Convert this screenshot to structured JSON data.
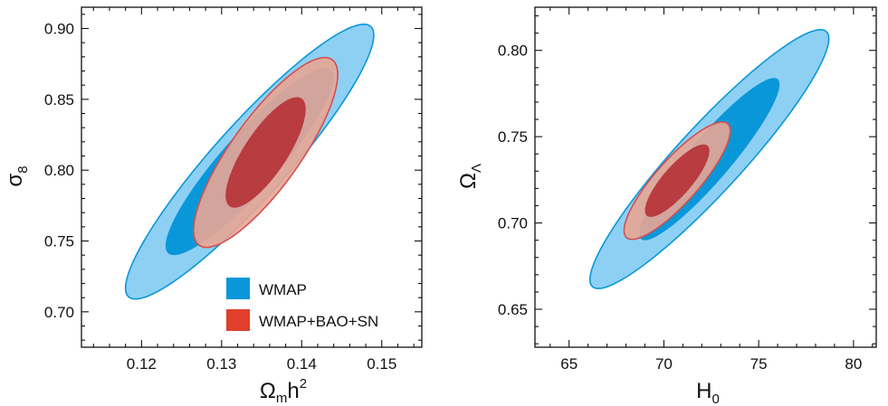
{
  "chart_data": [
    {
      "type": "contour",
      "xlabel": "Ω",
      "xlabel_sub": "m",
      "xlabel_tail": "h",
      "xlabel_sup": "2",
      "ylabel": "σ",
      "ylabel_sub": "8",
      "xlim": [
        0.1125,
        0.155
      ],
      "ylim": [
        0.675,
        0.915
      ],
      "xticks": [
        0.12,
        0.13,
        0.14,
        0.15
      ],
      "yticks": [
        0.7,
        0.75,
        0.8,
        0.85,
        0.9
      ],
      "xtick_labels": [
        "0.12",
        "0.13",
        "0.14",
        "0.15"
      ],
      "ytick_labels": [
        "0.70",
        "0.75",
        "0.80",
        "0.85",
        "0.90"
      ],
      "legend": {
        "position": "lower-right",
        "entries": [
          {
            "label": "WMAP",
            "color": "#0a97d9"
          },
          {
            "label": "WMAP+BAO+SN",
            "color": "#e1402c"
          }
        ]
      },
      "regions": [
        {
          "series": "WMAP",
          "level": "95%",
          "center": [
            0.1335,
            0.806
          ],
          "half_extent_x": 0.0155,
          "half_extent_y": 0.097,
          "correlation": 0.92,
          "fill": "#8ed0f4",
          "stroke": "#0a97d9"
        },
        {
          "series": "WMAP",
          "level": "68%",
          "center": [
            0.1335,
            0.806
          ],
          "half_extent_x": 0.0105,
          "half_extent_y": 0.066,
          "correlation": 0.9,
          "fill": "#0a97d9",
          "stroke": "none"
        },
        {
          "series": "WMAP+BAO+SN",
          "level": "95%",
          "center": [
            0.1355,
            0.8125
          ],
          "half_extent_x": 0.009,
          "half_extent_y": 0.067,
          "correlation": 0.82,
          "fill": "#e8a595",
          "stroke": "#d45050",
          "opacity": 0.9
        },
        {
          "series": "WMAP+BAO+SN",
          "level": "68%",
          "center": [
            0.1355,
            0.8125
          ],
          "half_extent_x": 0.005,
          "half_extent_y": 0.039,
          "correlation": 0.78,
          "fill": "#b83c40",
          "stroke": "none"
        }
      ]
    },
    {
      "type": "contour",
      "xlabel": "H",
      "xlabel_sub": "0",
      "ylabel": "Ω",
      "ylabel_sub": "Λ",
      "xlim": [
        63.2,
        81.2
      ],
      "ylim": [
        0.628,
        0.825
      ],
      "xticks": [
        65,
        70,
        75,
        80
      ],
      "yticks": [
        0.65,
        0.7,
        0.75,
        0.8
      ],
      "xtick_labels": [
        "65",
        "70",
        "75",
        "80"
      ],
      "ytick_labels": [
        "0.65",
        "0.70",
        "0.75",
        "0.80"
      ],
      "regions": [
        {
          "series": "WMAP",
          "level": "95%",
          "center": [
            72.4,
            0.737
          ],
          "half_extent_x": 6.3,
          "half_extent_y": 0.075,
          "correlation": 0.93,
          "fill": "#8ed0f4",
          "stroke": "#0a97d9"
        },
        {
          "series": "WMAP",
          "level": "68%",
          "center": [
            72.4,
            0.737
          ],
          "half_extent_x": 3.7,
          "half_extent_y": 0.047,
          "correlation": 0.92,
          "fill": "#0a97d9",
          "stroke": "none"
        },
        {
          "series": "WMAP+BAO+SN",
          "level": "95%",
          "center": [
            70.7,
            0.7245
          ],
          "half_extent_x": 2.8,
          "half_extent_y": 0.034,
          "correlation": 0.85,
          "fill": "#e8a595",
          "stroke": "#d45050",
          "opacity": 0.9
        },
        {
          "series": "WMAP+BAO+SN",
          "level": "68%",
          "center": [
            70.7,
            0.7245
          ],
          "half_extent_x": 1.7,
          "half_extent_y": 0.021,
          "correlation": 0.82,
          "fill": "#b83c40",
          "stroke": "none"
        }
      ]
    }
  ]
}
